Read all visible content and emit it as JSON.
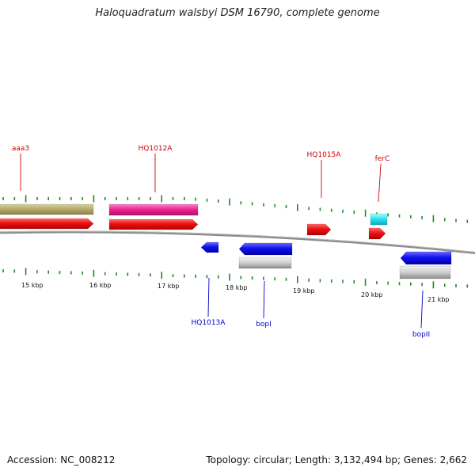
{
  "title": "Haloquadratum walsbyi DSM 16790, complete genome",
  "footer": {
    "accession": "Accession: NC_008212",
    "stats": "Topology: circular; Length: 3,132,494 bp; Genes: 2,662"
  },
  "colors": {
    "backbone": "#7f7f7f",
    "tick": "#1f8a1f",
    "forward_label": "#cc0000",
    "reverse_label": "#0000cc"
  },
  "scale_labels": [
    "15 kbp",
    "16 kbp",
    "17 kbp",
    "18 kbp",
    "19 kbp",
    "20 kbp",
    "21 kbp"
  ],
  "forward_gene_labels": [
    "aaa3",
    "HQ1012A",
    "HQ1015A",
    "ferC"
  ],
  "reverse_gene_labels": [
    "HQ1013A",
    "bopI",
    "bopII"
  ]
}
